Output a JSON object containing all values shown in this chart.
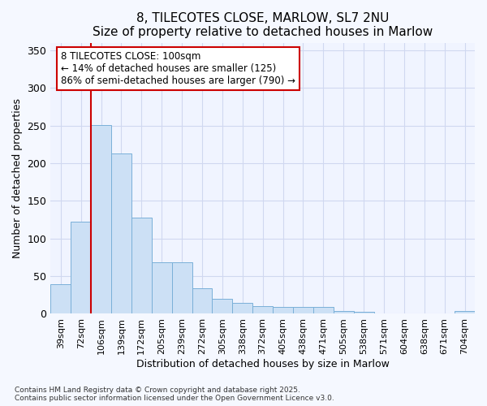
{
  "title": "8, TILECOTES CLOSE, MARLOW, SL7 2NU",
  "subtitle": "Size of property relative to detached houses in Marlow",
  "xlabel": "Distribution of detached houses by size in Marlow",
  "ylabel": "Number of detached properties",
  "categories": [
    "39sqm",
    "72sqm",
    "106sqm",
    "139sqm",
    "172sqm",
    "205sqm",
    "239sqm",
    "272sqm",
    "305sqm",
    "338sqm",
    "372sqm",
    "405sqm",
    "438sqm",
    "471sqm",
    "505sqm",
    "538sqm",
    "571sqm",
    "604sqm",
    "638sqm",
    "671sqm",
    "704sqm"
  ],
  "values": [
    39,
    122,
    251,
    213,
    128,
    68,
    68,
    34,
    20,
    15,
    10,
    9,
    9,
    9,
    4,
    3,
    1,
    1,
    0,
    0,
    4
  ],
  "bar_color": "#cce0f5",
  "bar_edge_color": "#7ab0d8",
  "vline_index": 2,
  "vline_color": "#cc0000",
  "annotation_line1": "8 TILECOTES CLOSE: 100sqm",
  "annotation_line2": "← 14% of detached houses are smaller (125)",
  "annotation_line3": "86% of semi-detached houses are larger (790) →",
  "annotation_box_edgecolor": "#cc0000",
  "background_color": "#f5f8ff",
  "plot_bg_color": "#f0f4ff",
  "footer_text": "Contains HM Land Registry data © Crown copyright and database right 2025.\nContains public sector information licensed under the Open Government Licence v3.0.",
  "ylim": [
    0,
    360
  ],
  "yticks": [
    0,
    50,
    100,
    150,
    200,
    250,
    300,
    350
  ],
  "grid_color": "#d0d8f0",
  "title_fontsize": 11,
  "subtitle_fontsize": 10,
  "axis_label_fontsize": 9,
  "tick_fontsize": 8,
  "footer_fontsize": 6.5
}
